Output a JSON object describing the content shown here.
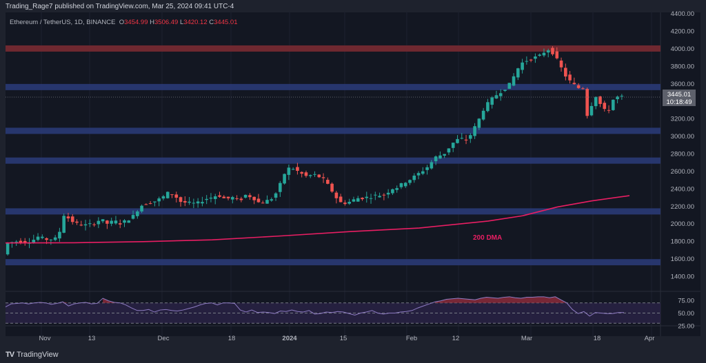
{
  "header": {
    "published": "Trading_Rage7 published on TradingView.com, Mar 25, 2024 09:41 UTC-4",
    "symbol": "Ethereum / TetherUS, 1D, BINANCE",
    "open_label": "O",
    "open": "3454.99",
    "high_label": "H",
    "high": "3506.49",
    "low_label": "L",
    "low": "3420.12",
    "close_label": "C",
    "close": "3445.01"
  },
  "price_tag": {
    "price": "3445.01",
    "countdown": "10:18:49"
  },
  "annotation": {
    "ma_label": "200 DMA"
  },
  "footer": {
    "brand": "TradingView",
    "logo_mark": "TV"
  },
  "colors": {
    "up": "#26a69a",
    "down": "#ef5350",
    "ma": "#e91e63",
    "support_band": "#2a3a75",
    "resistance_band": "#7a2a32",
    "rsi_line": "#7e57c2",
    "background": "#131722"
  },
  "chart_data": [
    {
      "type": "candlestick",
      "title": "Ethereum / TetherUS, 1D, BINANCE",
      "ylim": [
        1400,
        4400
      ],
      "y_ticks": [
        "4400.00",
        "4200.00",
        "4000.00",
        "3800.00",
        "3600.00",
        "3200.00",
        "3000.00",
        "2800.00",
        "2600.00",
        "2400.00",
        "2200.00",
        "2000.00",
        "1800.00",
        "1600.00",
        "1400.00"
      ],
      "x_ticks": [
        "Nov",
        "13",
        "Dec",
        "18",
        "2024",
        "15",
        "Feb",
        "12",
        "Mar",
        "18",
        "Apr"
      ],
      "horizontal_bands": [
        {
          "level": 4000,
          "type": "resistance",
          "color": "red"
        },
        {
          "level": 3560,
          "type": "resistance",
          "color": "blue"
        },
        {
          "level": 3060,
          "type": "support",
          "color": "blue"
        },
        {
          "level": 2720,
          "type": "support",
          "color": "blue"
        },
        {
          "level": 2140,
          "type": "support",
          "color": "blue"
        },
        {
          "level": 1560,
          "type": "support",
          "color": "blue"
        }
      ],
      "series": [
        {
          "name": "200 DMA",
          "type": "line",
          "points": [
            [
              0,
              1780
            ],
            [
              100,
              1782
            ],
            [
              200,
              1795
            ],
            [
              300,
              1815
            ],
            [
              400,
              1860
            ],
            [
              500,
              1910
            ],
            [
              600,
              1950
            ],
            [
              700,
              2030
            ],
            [
              750,
              2090
            ],
            [
              800,
              2190
            ],
            [
              850,
              2260
            ],
            [
              905,
              2320
            ]
          ]
        }
      ],
      "last_price": 3445.01
    },
    {
      "type": "line",
      "title": "RSI",
      "ylim": [
        25,
        75
      ],
      "y_ticks": [
        "75.00",
        "50.00",
        "25.00"
      ],
      "levels": [
        70,
        50,
        30
      ],
      "series": [
        {
          "name": "RSI",
          "values": [
            62,
            68,
            69,
            70,
            68,
            70,
            71,
            70,
            67,
            69,
            72,
            64,
            68,
            70,
            71,
            68,
            69,
            79,
            74,
            71,
            70,
            66,
            60,
            55,
            55,
            57,
            52,
            56,
            57,
            55,
            54,
            56,
            59,
            62,
            66,
            69,
            70,
            66,
            70,
            70,
            69,
            56,
            52,
            56,
            51,
            52,
            51,
            49,
            54,
            53,
            56,
            53,
            52,
            55,
            48,
            49,
            52,
            51,
            53,
            52,
            49,
            46,
            50,
            52,
            55,
            50,
            48,
            50,
            50,
            52,
            53,
            55,
            60,
            64,
            68,
            72,
            74,
            77,
            78,
            79,
            78,
            77,
            76,
            79,
            81,
            80,
            79,
            81,
            82,
            80,
            79,
            81,
            81,
            82,
            82,
            80,
            82,
            76,
            70,
            57,
            49,
            53,
            44,
            51,
            50,
            49,
            49,
            51,
            51
          ]
        }
      ]
    }
  ]
}
